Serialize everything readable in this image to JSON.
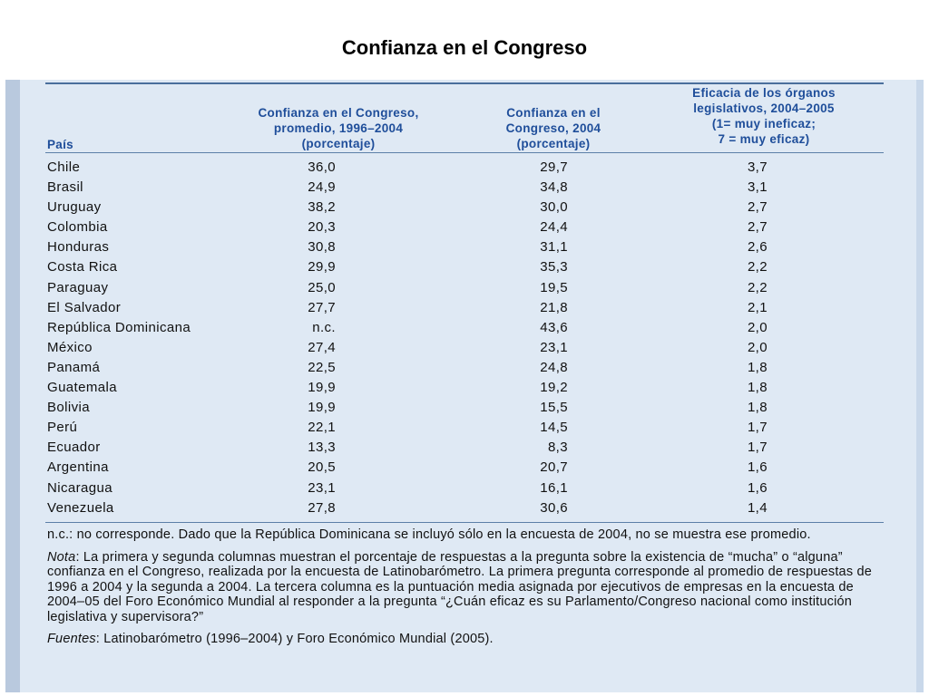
{
  "title": "Confianza en el Congreso",
  "table": {
    "headers": {
      "country": "País",
      "col1": [
        "Confianza en el Congreso,",
        "promedio, 1996–2004",
        "(porcentaje)"
      ],
      "col2": [
        "Confianza en el",
        "Congreso, 2004",
        "(porcentaje)"
      ],
      "col3": [
        "Eficacia de los órganos",
        "legislativos, 2004–2005",
        "(1= muy ineficaz;",
        "7 = muy eficaz)"
      ]
    },
    "rows": [
      {
        "country": "Chile",
        "v1": "36,0",
        "v2": "29,7",
        "v3": "3,7"
      },
      {
        "country": "Brasil",
        "v1": "24,9",
        "v2": "34,8",
        "v3": "3,1"
      },
      {
        "country": "Uruguay",
        "v1": "38,2",
        "v2": "30,0",
        "v3": "2,7"
      },
      {
        "country": "Colombia",
        "v1": "20,3",
        "v2": "24,4",
        "v3": "2,7"
      },
      {
        "country": "Honduras",
        "v1": "30,8",
        "v2": "31,1",
        "v3": "2,6"
      },
      {
        "country": "Costa Rica",
        "v1": "29,9",
        "v2": "35,3",
        "v3": "2,2"
      },
      {
        "country": "Paraguay",
        "v1": "25,0",
        "v2": "19,5",
        "v3": "2,2"
      },
      {
        "country": "El Salvador",
        "v1": "27,7",
        "v2": "21,8",
        "v3": "2,1"
      },
      {
        "country": "República Dominicana",
        "v1": "n.c.",
        "v2": "43,6",
        "v3": "2,0"
      },
      {
        "country": "México",
        "v1": "27,4",
        "v2": "23,1",
        "v3": "2,0"
      },
      {
        "country": "Panamá",
        "v1": "22,5",
        "v2": "24,8",
        "v3": "1,8"
      },
      {
        "country": "Guatemala",
        "v1": "19,9",
        "v2": "19,2",
        "v3": "1,8"
      },
      {
        "country": "Bolivia",
        "v1": "19,9",
        "v2": "15,5",
        "v3": "1,8"
      },
      {
        "country": "Perú",
        "v1": "22,1",
        "v2": "14,5",
        "v3": "1,7"
      },
      {
        "country": "Ecuador",
        "v1": "13,3",
        "v2": "8,3",
        "v3": "1,7"
      },
      {
        "country": "Argentina",
        "v1": "20,5",
        "v2": "20,7",
        "v3": "1,6"
      },
      {
        "country": "Nicaragua",
        "v1": "23,1",
        "v2": "16,1",
        "v3": "1,6"
      },
      {
        "country": "Venezuela",
        "v1": "27,8",
        "v2": "30,6",
        "v3": "1,4"
      }
    ]
  },
  "notes": {
    "nc_note": "n.c.: no corresponde. Dado que la República Dominicana se incluyó sólo en la encuesta de 2004, no se muestra ese promedio.",
    "nota_label": "Nota",
    "nota_text": ": La primera y segunda columnas muestran el porcentaje de respuestas a la pregunta sobre la existencia de “mucha” o “alguna” confianza en el Congreso, realizada por la encuesta de Latinobarómetro. La primera pregunta corresponde al promedio de respuestas de 1996 a 2004 y la segunda a 2004. La tercera columna es la puntuación media asignada por ejecutivos de empresas en la encuesta de 2004–05 del Foro Económico Mundial al responder a la pregunta “¿Cuán eficaz es su Parlamento/Congreso nacional como institución legislativa y supervisora?”",
    "fuentes_label": "Fuentes",
    "fuentes_text": ": Latinobarómetro (1996–2004) y Foro Económico Mundial (2005)."
  }
}
